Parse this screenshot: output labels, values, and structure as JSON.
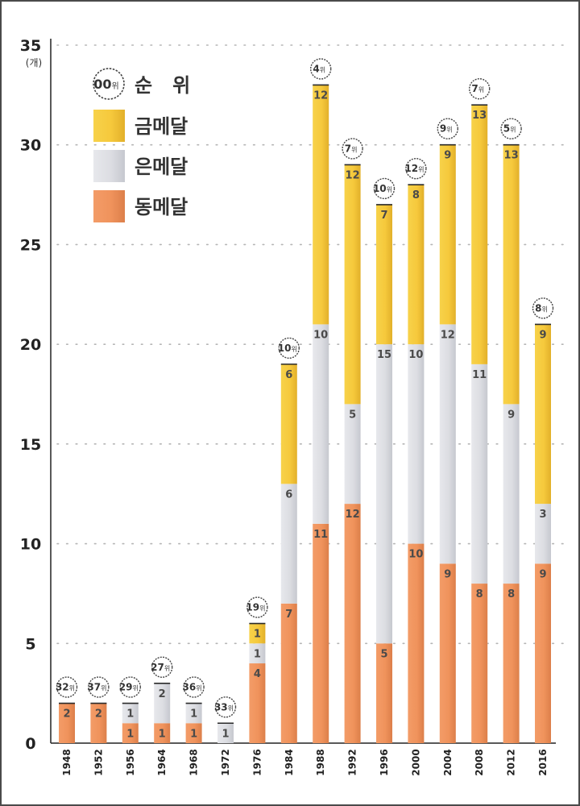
{
  "chart_data": {
    "type": "bar",
    "stacked": true,
    "title": "",
    "ylabel": "(개)",
    "ylim": [
      0,
      35
    ],
    "yticks": [
      0,
      5,
      10,
      15,
      20,
      25,
      30,
      35
    ],
    "grid": true,
    "legend_position": "top-left",
    "categories": [
      "1948",
      "1952",
      "1956",
      "1964",
      "1968",
      "1972",
      "1976",
      "1984",
      "1988",
      "1992",
      "1996",
      "2000",
      "2004",
      "2008",
      "2012",
      "2016"
    ],
    "series": [
      {
        "name": "동메달",
        "key": "bronze",
        "color": "#f0935c",
        "values": [
          2,
          2,
          1,
          1,
          1,
          0,
          4,
          7,
          11,
          12,
          5,
          10,
          9,
          8,
          8,
          9
        ]
      },
      {
        "name": "은메달",
        "key": "silver",
        "color": "#dcdde2",
        "values": [
          0,
          0,
          1,
          2,
          1,
          1,
          1,
          6,
          10,
          5,
          15,
          10,
          12,
          11,
          9,
          3
        ]
      },
      {
        "name": "금메달",
        "key": "gold",
        "color": "#f6c93c",
        "values": [
          0,
          0,
          0,
          0,
          0,
          0,
          1,
          6,
          12,
          12,
          7,
          8,
          9,
          13,
          13,
          9
        ]
      }
    ],
    "ranks": [
      "32",
      "37",
      "29",
      "27",
      "36",
      "33",
      "19",
      "10",
      "4",
      "7",
      "10",
      "12",
      "9",
      "7",
      "5",
      "8"
    ],
    "rank_suffix": "위",
    "legend": {
      "rank_label": "순   위",
      "rank_icon_num": "00",
      "rank_icon_suffix": "위",
      "items": [
        "금메달",
        "은메달",
        "동메달"
      ]
    }
  }
}
